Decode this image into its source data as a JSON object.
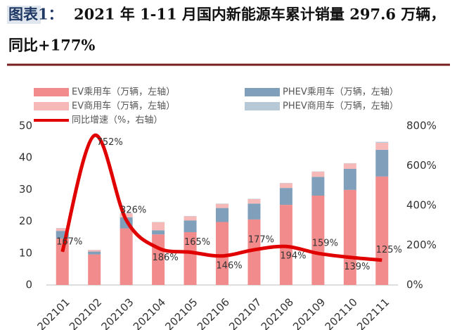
{
  "chart_data": {
    "type": "bar_line",
    "title_label": "图表1：",
    "title_lines": [
      "2021 年 1-11 月国内新能源车累计销量 297.6 万辆，",
      "同比+177%"
    ],
    "categories": [
      "202101",
      "202102",
      "202103",
      "202104",
      "202105",
      "202106",
      "202107",
      "202108",
      "202109",
      "202110",
      "202111"
    ],
    "series": [
      {
        "name": "EV乘用车（万辆，左轴）",
        "color": "#f28b8b",
        "values": [
          14.6,
          9.6,
          17.8,
          15.9,
          16.6,
          19.8,
          20.6,
          25.2,
          28.1,
          29.9,
          34.1
        ]
      },
      {
        "name": "PHEV乘用车（万辆，左轴）",
        "color": "#7f9fba",
        "values": [
          2.4,
          0.9,
          3.5,
          1.3,
          3.7,
          4.4,
          5.0,
          5.3,
          5.9,
          6.6,
          8.4
        ]
      },
      {
        "name": "EV商用车（万辆，左轴）",
        "color": "#f7b8b8",
        "values": [
          0.8,
          0.5,
          1.2,
          2.5,
          1.3,
          1.3,
          1.4,
          1.5,
          1.6,
          1.7,
          2.2
        ]
      },
      {
        "name": "PHEV商用车（万辆，左轴）",
        "color": "#b7c9d6",
        "values": [
          0.1,
          0.05,
          0.1,
          0.1,
          0.1,
          0.1,
          0.1,
          0.1,
          0.1,
          0.1,
          0.3
        ]
      },
      {
        "name": "同比增速（%，右轴）",
        "color": "#e00000",
        "axis": "y2",
        "type": "line",
        "values": [
          167,
          752,
          326,
          186,
          165,
          146,
          177,
          194,
          159,
          139,
          125
        ],
        "value_labels": [
          "167%",
          "752%",
          "326%",
          "186%",
          "165%",
          "146%",
          "177%",
          "194%",
          "159%",
          "139%",
          "125%"
        ]
      }
    ],
    "ylim": [
      0,
      50
    ],
    "yticks": [
      0,
      10,
      20,
      30,
      40,
      50
    ],
    "y2lim": [
      0,
      800
    ],
    "y2ticks": [
      {
        "value": 0,
        "label": "0%"
      },
      {
        "value": 200,
        "label": "200%"
      },
      {
        "value": 400,
        "label": "400%"
      },
      {
        "value": 600,
        "label": "600%"
      },
      {
        "value": 800,
        "label": "800%"
      }
    ]
  }
}
